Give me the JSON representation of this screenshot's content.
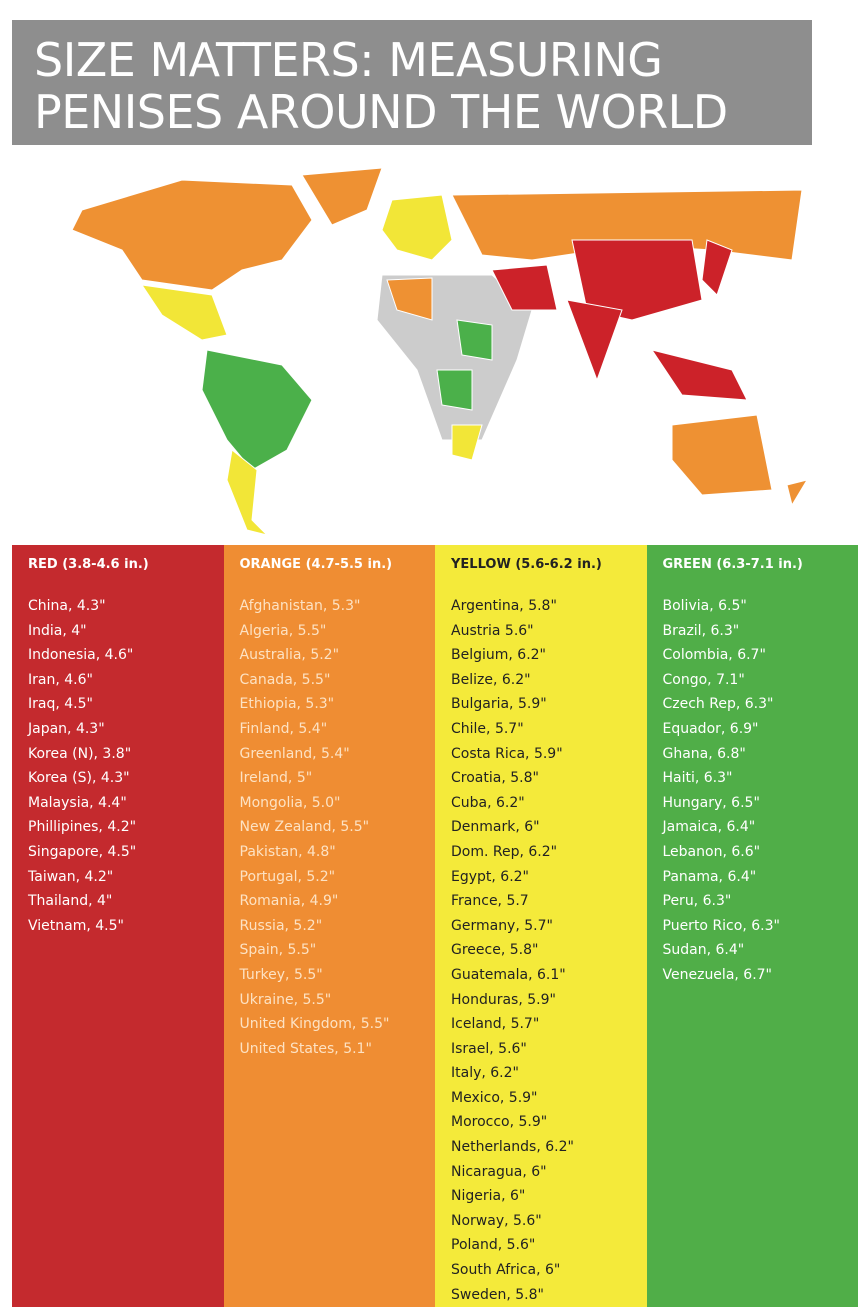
{
  "header": {
    "title_lines": [
      "SIZE MATTERS: MEASURING",
      "PENISES AROUND THE WORLD"
    ]
  },
  "columns": [
    {
      "header": "RED (3.8-4.6 in.)",
      "items": [
        "China, 4.3\"",
        "India, 4\"",
        "Indonesia, 4.6\"",
        "Iran, 4.6\"",
        "Iraq, 4.5\"",
        "Japan, 4.3\"",
        "Korea (N), 3.8\"",
        "Korea (S), 4.3\"",
        "Malaysia, 4.4\"",
        "Phillipines, 4.2\"",
        "Singapore, 4.5\"",
        "Taiwan, 4.2\"",
        "Thailand, 4\"",
        "Vietnam, 4.5\""
      ]
    },
    {
      "header": "ORANGE (4.7-5.5 in.)",
      "items": [
        "Afghanistan, 5.3\"",
        "Algeria, 5.5\"",
        "Australia, 5.2\"",
        "Canada, 5.5\"",
        "Ethiopia, 5.3\"",
        "Finland, 5.4\"",
        "Greenland, 5.4\"",
        "Ireland, 5\"",
        "Mongolia, 5.0\"",
        "New Zealand, 5.5\"",
        "Pakistan, 4.8\"",
        "Portugal, 5.2\"",
        "Romania, 4.9\"",
        "Russia, 5.2\"",
        "Spain, 5.5\"",
        "Turkey, 5.5\"",
        "Ukraine, 5.5\"",
        "United Kingdom, 5.5\"",
        "United States, 5.1\""
      ]
    },
    {
      "header": "YELLOW (5.6-6.2 in.)",
      "items": [
        "Argentina, 5.8\"",
        "Austria 5.6\"",
        "Belgium, 6.2\"",
        "Belize, 6.2\"",
        "Bulgaria, 5.9\"",
        "Chile, 5.7\"",
        "Costa Rica, 5.9\"",
        "Croatia, 5.8\"",
        "Cuba, 6.2\"",
        "Denmark, 6\"",
        "Dom. Rep, 6.2\"",
        "Egypt, 6.2\"",
        "France, 5.7",
        "Germany, 5.7\"",
        "Greece, 5.8\"",
        "Guatemala, 6.1\"",
        "Honduras, 5.9\"",
        "Iceland, 5.7\"",
        "Israel, 5.6\"",
        "Italy, 6.2\"",
        "Mexico, 5.9\"",
        "Morocco, 5.9\"",
        "Netherlands, 6.2\"",
        "Nicaragua, 6\"",
        "Nigeria, 6\"",
        "Norway, 5.6\"",
        "Poland, 5.6\"",
        "South Africa, 6\"",
        "Sweden, 5.8\""
      ]
    },
    {
      "header": "GREEN (6.3-7.1 in.)",
      "items": [
        "Bolivia, 6.5\"",
        "Brazil, 6.3\"",
        "Colombia, 6.7\"",
        "Congo, 7.1\"",
        "Czech Rep, 6.3\"",
        "Equador, 6.9\"",
        "Ghana, 6.8\"",
        "Haiti, 6.3\"",
        "Hungary, 6.5\"",
        "Jamaica, 6.4\"",
        "Lebanon, 6.6\"",
        "Panama, 6.4\"",
        "Peru, 6.3\"",
        "Puerto Rico, 6.3\"",
        "Sudan, 6.4\"",
        "Venezuela, 6.7\""
      ]
    }
  ]
}
